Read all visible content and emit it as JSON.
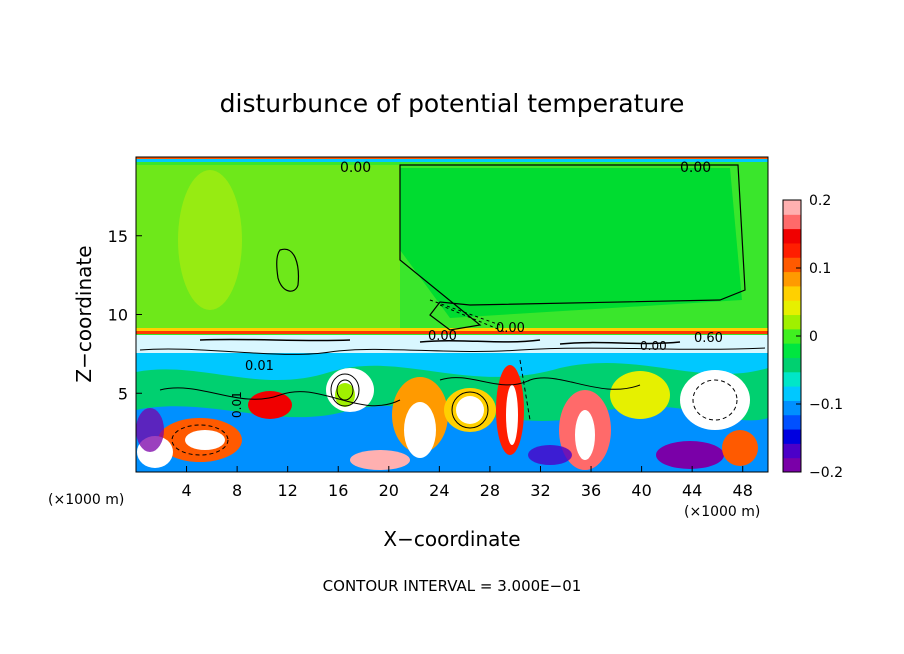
{
  "chart_data": {
    "type": "heatmap",
    "title": "disturbunce of potential temperature",
    "xlabel": "X−coordinate",
    "ylabel": "Z−coordinate",
    "x_unit_left": "(×1000 m)",
    "x_unit_right": "(×1000 m)",
    "xlim": [
      0,
      50
    ],
    "ylim": [
      0,
      20
    ],
    "x_ticks": [
      4,
      8,
      12,
      16,
      20,
      24,
      28,
      32,
      36,
      40,
      44,
      48
    ],
    "y_ticks": [
      5,
      10,
      15
    ],
    "colorbar": {
      "range": [
        -0.2,
        0.2
      ],
      "ticks": [
        {
          "value": 0.2,
          "label": "0.2"
        },
        {
          "value": 0.1,
          "label": "0.1"
        },
        {
          "value": 0,
          "label": "0"
        },
        {
          "value": -0.1,
          "label": "−0.1"
        },
        {
          "value": -0.2,
          "label": "−0.2"
        }
      ],
      "colors": [
        "#7a00a8",
        "#4b00c8",
        "#0000e0",
        "#0050ff",
        "#0090ff",
        "#00c8ff",
        "#00e6c8",
        "#00d070",
        "#00e640",
        "#40f020",
        "#a0f000",
        "#e6f000",
        "#ffd000",
        "#ff9a00",
        "#ff5a00",
        "#ff1e00",
        "#f00000",
        "#ff6a6a",
        "#ffb0b0"
      ]
    },
    "contour_labels": [
      "0.00",
      "0.00",
      "0.00",
      "0.00",
      "0.60",
      "0.01",
      "0.01",
      "0.00"
    ],
    "footer": "CONTOUR INTERVAL = 3.000E−01"
  }
}
